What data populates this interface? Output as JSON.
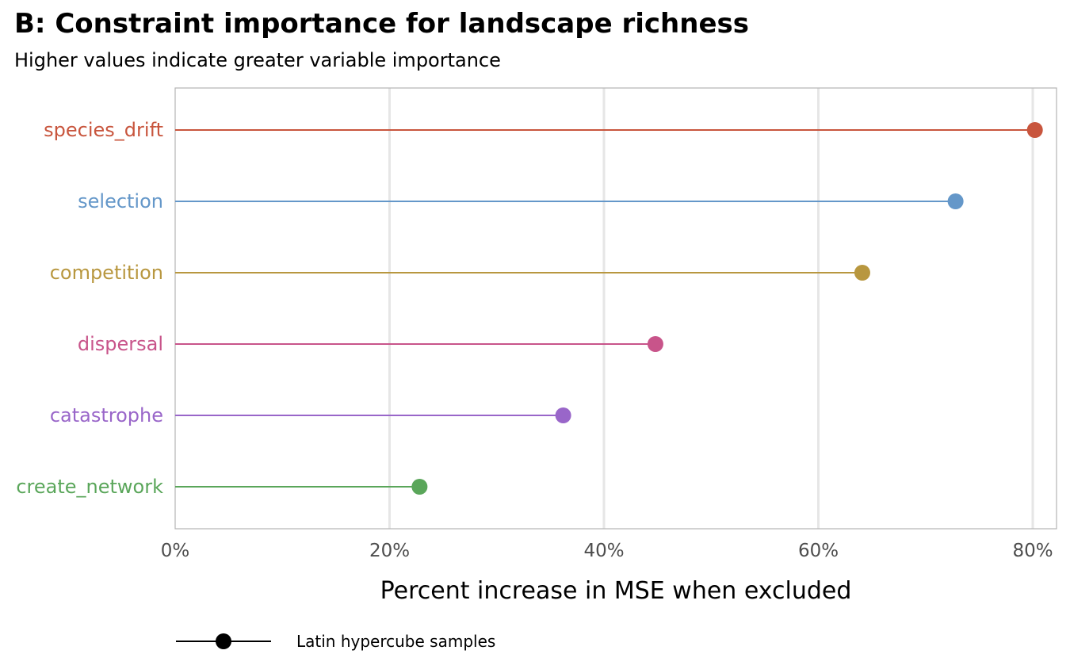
{
  "title": "B: Constraint importance for landscape richness",
  "subtitle": "Higher values indicate greater variable importance",
  "chart_data": {
    "type": "lollipop",
    "title": "B: Constraint importance for landscape richness",
    "subtitle": "Higher values indicate greater variable importance",
    "xlabel": "Percent increase in MSE when excluded",
    "ylabel": "",
    "xlim": [
      0,
      82
    ],
    "xticks": [
      0,
      20,
      40,
      60,
      80
    ],
    "xtick_labels": [
      "0%",
      "20%",
      "40%",
      "60%",
      "80%"
    ],
    "grid": "vertical",
    "categories": [
      "species_drift",
      "selection",
      "competition",
      "dispersal",
      "catastrophe",
      "create_network"
    ],
    "values": [
      80.2,
      72.8,
      64.1,
      44.8,
      36.2,
      22.8
    ],
    "colors": [
      "#c8553d",
      "#6497c9",
      "#b8973f",
      "#c8548a",
      "#9966c9",
      "#5aa65a"
    ],
    "legend": {
      "position": "bottom",
      "entries": [
        "Latin hypercube samples"
      ]
    }
  }
}
